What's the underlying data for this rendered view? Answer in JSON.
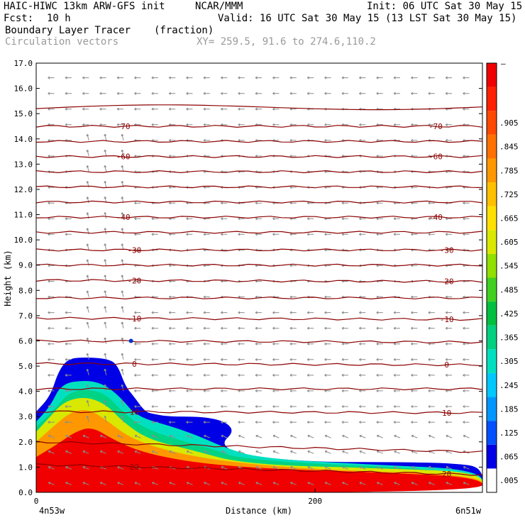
{
  "header": {
    "line1_left": "HAIC-HIWC 13km ARW-GFS init",
    "line1_mid": "NCAR/MMM",
    "line1_right": "Init: 06 UTC Sat 30 May 15",
    "line2_left": "Fcst:",
    "line2_fcst": "10 h",
    "line2_right": "Valid: 16 UTC Sat 30 May 15 (13 LST Sat 30 May 15)",
    "field_name": "Boundary Layer Tracer",
    "field_units": "(fraction)",
    "vector_label": "Circulation vectors",
    "xy_label": "XY= 259.5, 91.6 to 274.6,110.2"
  },
  "colors": {
    "contour": "#8b0000",
    "vector": "#8c8c8c",
    "frame": "#000000"
  },
  "chart_data": {
    "type": "heatmap",
    "xlabel": "Distance (km)",
    "ylabel": "Height (km)",
    "xlim": [
      0,
      320
    ],
    "ylim": [
      0,
      17
    ],
    "x_ticks": [
      {
        "value": 0,
        "label": "0"
      },
      {
        "value": 200,
        "label": "200"
      }
    ],
    "x_end_labels": {
      "left": "4n53w",
      "right": "6n51w"
    },
    "y_ticks": [
      {
        "value": 0,
        "label": "0.0"
      },
      {
        "value": 1,
        "label": "1.0"
      },
      {
        "value": 2,
        "label": "2.0"
      },
      {
        "value": 3,
        "label": "3.0"
      },
      {
        "value": 4,
        "label": "4.0"
      },
      {
        "value": 5,
        "label": "5.0"
      },
      {
        "value": 6,
        "label": "6.0"
      },
      {
        "value": 7,
        "label": "7.0"
      },
      {
        "value": 8,
        "label": "8.0"
      },
      {
        "value": 9,
        "label": "9.0"
      },
      {
        "value": 10,
        "label": "10.0"
      },
      {
        "value": 11,
        "label": "11.0"
      },
      {
        "value": 12,
        "label": "12.0"
      },
      {
        "value": 13,
        "label": "13.0"
      },
      {
        "value": 14,
        "label": "14.0"
      },
      {
        "value": 15,
        "label": "15.0"
      },
      {
        "value": 16,
        "label": "16.0"
      },
      {
        "value": 17,
        "label": "17.0"
      }
    ],
    "colorbar": {
      "colors": [
        "#ffffff",
        "#0000e6",
        "#0050ff",
        "#0096ff",
        "#00c8ff",
        "#00e0c0",
        "#00d080",
        "#00c040",
        "#40d020",
        "#90e000",
        "#d8e800",
        "#ffe000",
        "#ffc000",
        "#ff9800",
        "#ff7000",
        "#ff4800",
        "#ff2000",
        "#f00000"
      ],
      "labels": [
        ".005",
        ".065",
        ".125",
        ".185",
        ".245",
        ".305",
        ".365",
        ".425",
        ".485",
        ".545",
        ".605",
        ".665",
        ".725",
        ".785",
        ".845",
        ".905",
        "",
        ""
      ],
      "top_label": "–"
    },
    "tracer_regions": [
      {
        "value": 0.005,
        "outline": [
          [
            0,
            3.2
          ],
          [
            10,
            3.8
          ],
          [
            16,
            4.8
          ],
          [
            23,
            5.3
          ],
          [
            35,
            5.35
          ],
          [
            50,
            5.3
          ],
          [
            58,
            5.1
          ],
          [
            64,
            4.2
          ],
          [
            70,
            3.8
          ],
          [
            78,
            3.2
          ],
          [
            84,
            3.1
          ],
          [
            96,
            3.0
          ],
          [
            120,
            3.0
          ],
          [
            136,
            2.8
          ],
          [
            142,
            2.4
          ],
          [
            132,
            1.9
          ],
          [
            148,
            1.45
          ],
          [
            200,
            1.2
          ],
          [
            260,
            1.2
          ],
          [
            300,
            1.15
          ],
          [
            320,
            1.0
          ],
          [
            320,
            0
          ],
          [
            0,
            0
          ]
        ]
      },
      {
        "value": 0.245,
        "outline": [
          [
            0,
            2.8
          ],
          [
            10,
            3.4
          ],
          [
            18,
            4.3
          ],
          [
            35,
            4.45
          ],
          [
            48,
            4.3
          ],
          [
            60,
            3.8
          ],
          [
            72,
            3.0
          ],
          [
            98,
            2.6
          ],
          [
            118,
            2.2
          ],
          [
            134,
            1.8
          ],
          [
            160,
            1.35
          ],
          [
            240,
            1.1
          ],
          [
            320,
            0.9
          ],
          [
            320,
            0
          ],
          [
            0,
            0
          ]
        ]
      },
      {
        "value": 0.545,
        "outline": [
          [
            0,
            2.4
          ],
          [
            10,
            3.0
          ],
          [
            20,
            3.6
          ],
          [
            35,
            3.8
          ],
          [
            50,
            3.5
          ],
          [
            62,
            2.8
          ],
          [
            80,
            2.1
          ],
          [
            110,
            1.7
          ],
          [
            150,
            1.1
          ],
          [
            250,
            0.95
          ],
          [
            320,
            0.8
          ],
          [
            320,
            0
          ],
          [
            0,
            0
          ]
        ]
      },
      {
        "value": 0.725,
        "outline": [
          [
            0,
            2.0
          ],
          [
            12,
            2.6
          ],
          [
            25,
            3.2
          ],
          [
            38,
            3.3
          ],
          [
            52,
            2.8
          ],
          [
            66,
            2.2
          ],
          [
            90,
            1.7
          ],
          [
            130,
            1.25
          ],
          [
            200,
            0.9
          ],
          [
            320,
            0.7
          ],
          [
            320,
            0
          ],
          [
            0,
            0
          ]
        ]
      },
      {
        "value": 0.905,
        "outline": [
          [
            0,
            1.4
          ],
          [
            15,
            1.9
          ],
          [
            28,
            2.4
          ],
          [
            40,
            2.6
          ],
          [
            55,
            2.1
          ],
          [
            75,
            1.6
          ],
          [
            110,
            1.2
          ],
          [
            160,
            0.95
          ],
          [
            240,
            0.8
          ],
          [
            320,
            0.6
          ],
          [
            320,
            0
          ],
          [
            0,
            0
          ]
        ]
      }
    ],
    "temperature_contours": [
      {
        "value": 20,
        "label": "20",
        "y": [
          1.1,
          0.7
        ]
      },
      {
        "value": 15,
        "label": "",
        "y": [
          2.0,
          1.6
        ]
      },
      {
        "value": 10,
        "label": "10",
        "y": [
          3.2,
          3.15
        ]
      },
      {
        "value": 5,
        "label": "",
        "y": [
          4.1,
          4.1
        ]
      },
      {
        "value": 0,
        "label": "0",
        "y": [
          5.1,
          5.05
        ]
      },
      {
        "value": -5,
        "label": "",
        "y": [
          6.0,
          5.95
        ]
      },
      {
        "value": -10,
        "label": "-10",
        "y": [
          6.9,
          6.85
        ]
      },
      {
        "value": -15,
        "label": "",
        "y": [
          7.7,
          7.7
        ]
      },
      {
        "value": -20,
        "label": "-20",
        "y": [
          8.4,
          8.35
        ]
      },
      {
        "value": -25,
        "label": "",
        "y": [
          9.0,
          9.0
        ]
      },
      {
        "value": -30,
        "label": "-30",
        "y": [
          9.6,
          9.6
        ]
      },
      {
        "value": -35,
        "label": "",
        "y": [
          10.3,
          10.3
        ]
      },
      {
        "value": -40,
        "label": "-40",
        "y": [
          10.9,
          10.9
        ]
      },
      {
        "value": -45,
        "label": "",
        "y": [
          11.5,
          11.5
        ]
      },
      {
        "value": -50,
        "label": "",
        "y": [
          12.1,
          12.1
        ]
      },
      {
        "value": -55,
        "label": "",
        "y": [
          12.7,
          12.7
        ]
      },
      {
        "value": -60,
        "label": "-60",
        "y": [
          13.3,
          13.3
        ]
      },
      {
        "value": -65,
        "label": "",
        "y": [
          13.9,
          13.9
        ]
      },
      {
        "value": -70,
        "label": "-70",
        "y": [
          14.5,
          14.5
        ]
      },
      {
        "value": -75,
        "label": "",
        "y": [
          15.2,
          15.3
        ]
      }
    ],
    "marker": {
      "x": 68,
      "y": 6.0,
      "color": "#0033cc"
    }
  }
}
